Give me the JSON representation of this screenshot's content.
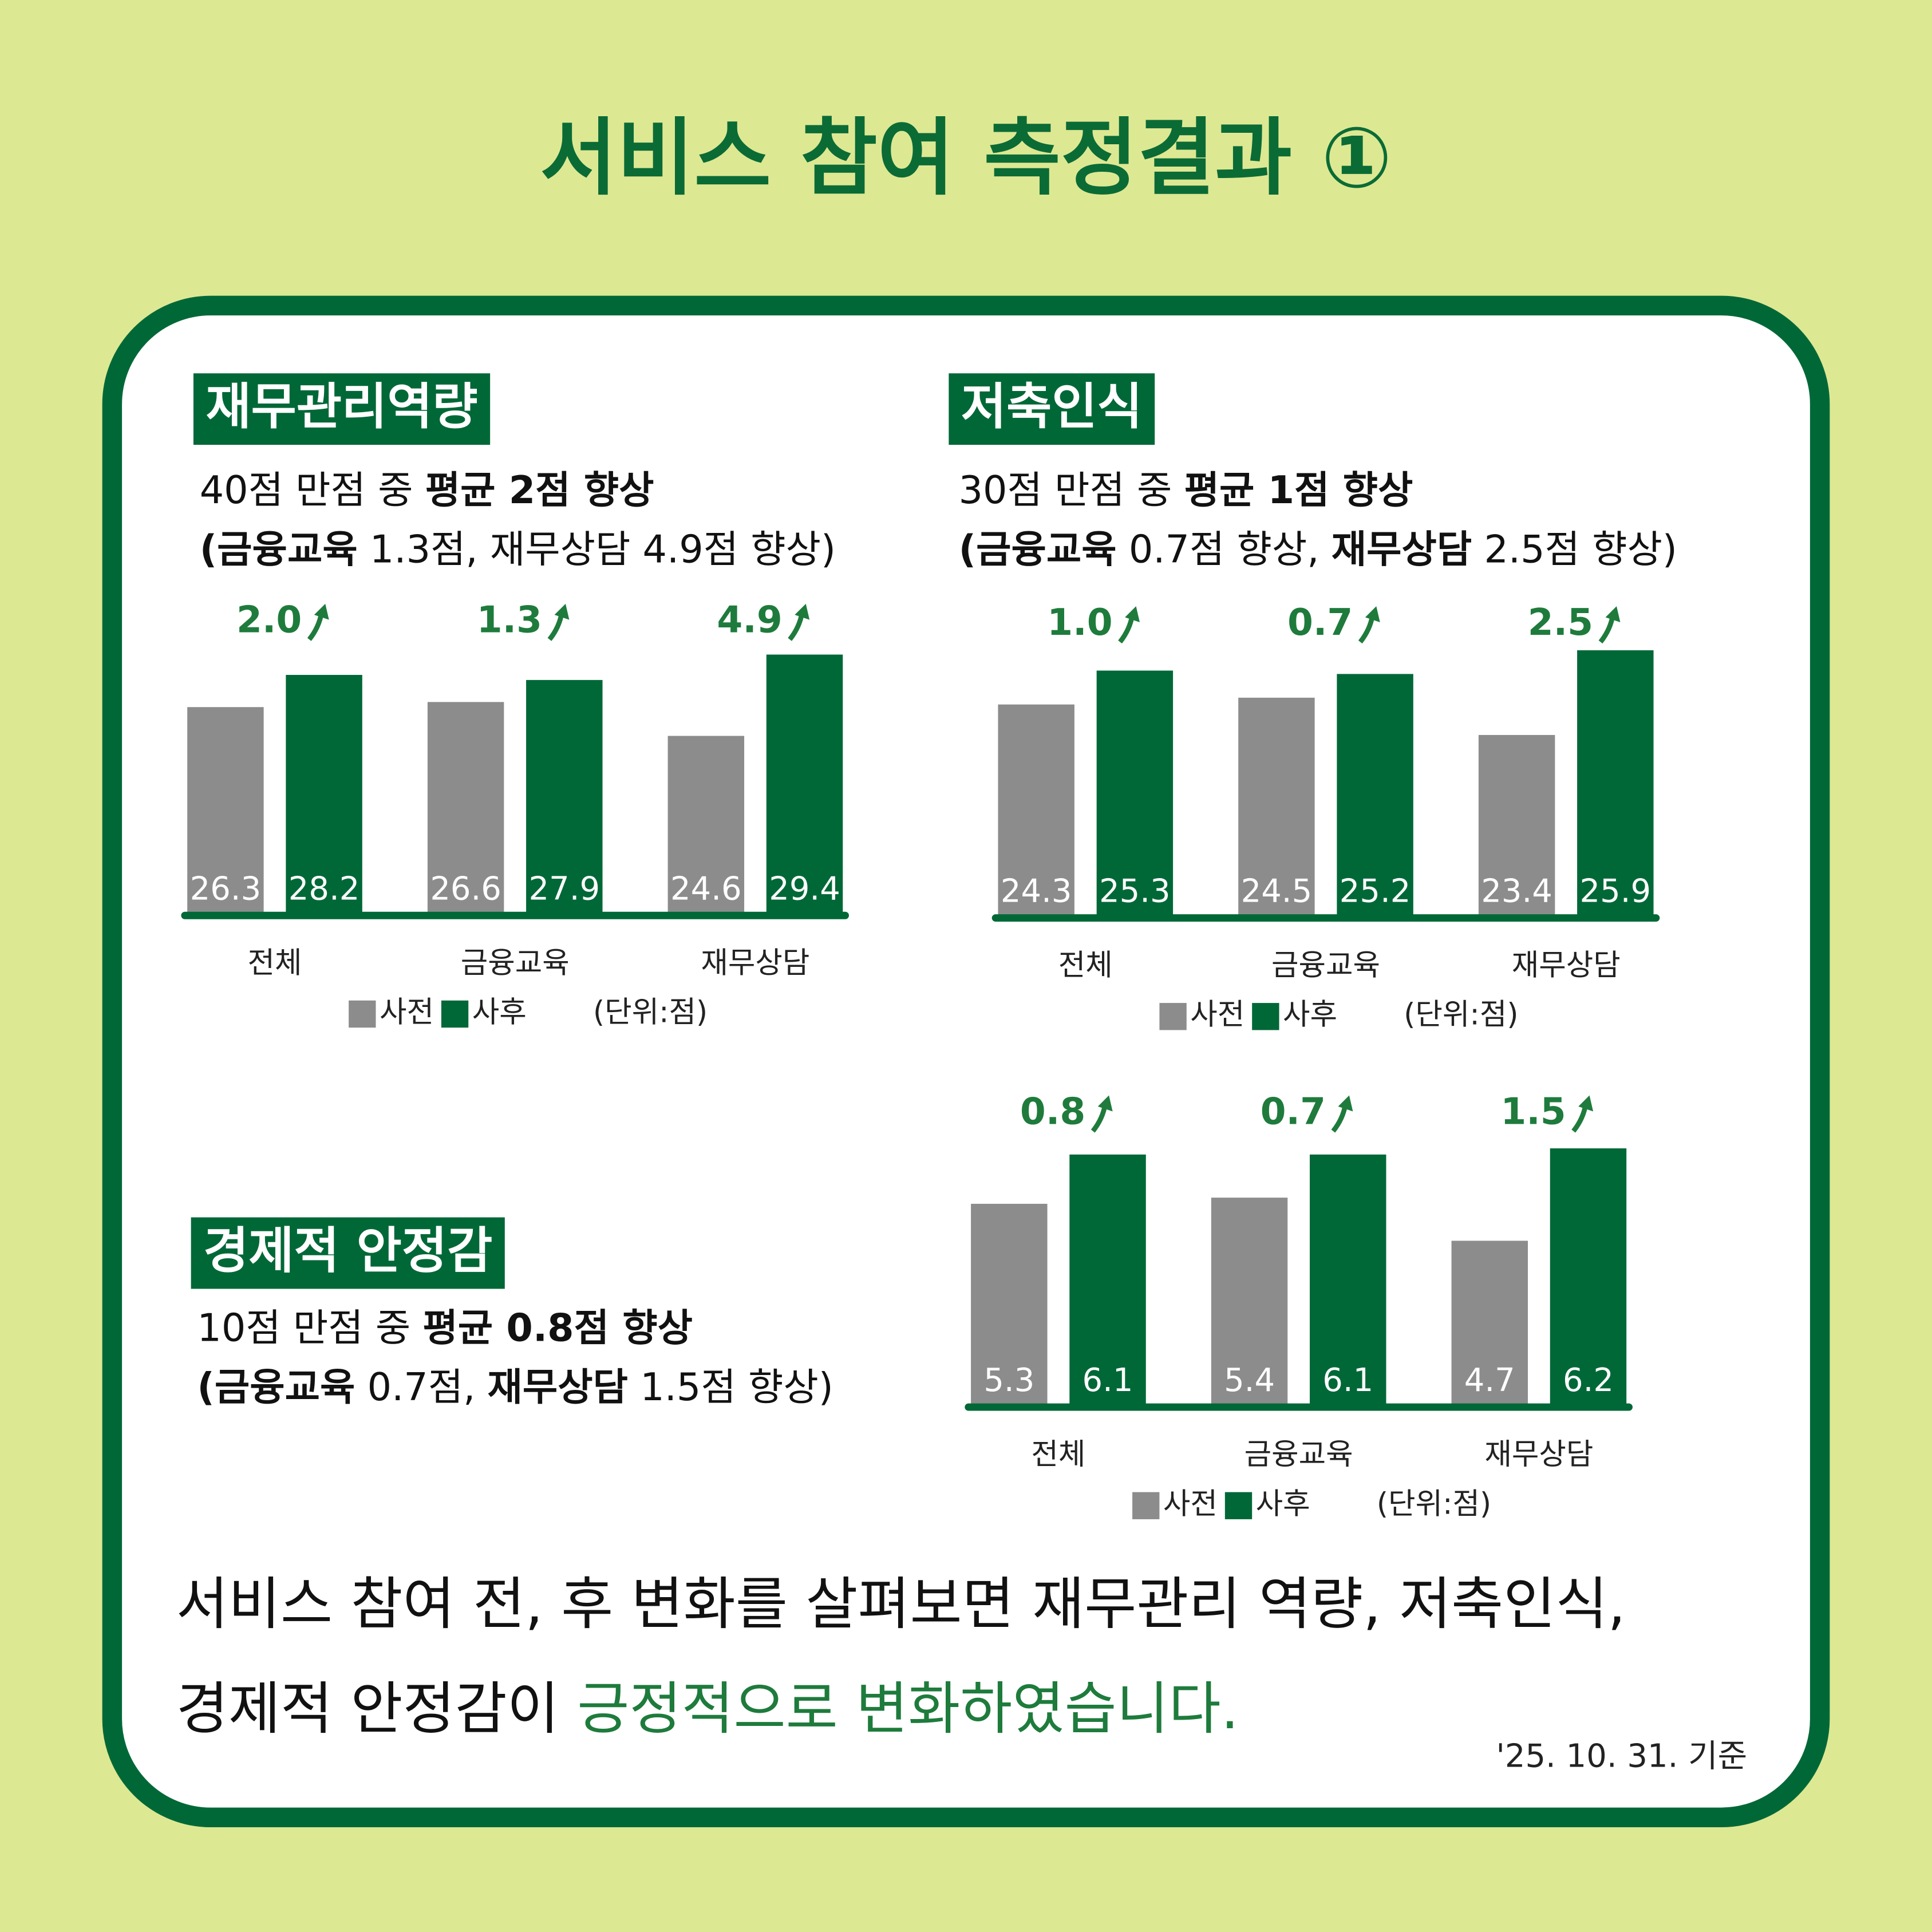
{
  "header": {
    "title": "서비스 참여 측정결과 ①"
  },
  "chart_data": [
    {
      "type": "bar",
      "title": "재무관리역량",
      "subtitle": [
        [
          {
            "text": "40점 만점 중 ",
            "bold": false
          },
          {
            "text": "평균 2점 향상",
            "bold": true
          }
        ],
        [
          {
            "text": "(금융교육",
            "bold": true
          },
          {
            "text": " 1.3점, 재무상담 4.9점 향상)",
            "bold": false
          }
        ]
      ],
      "categories": [
        "전체",
        "금융교육",
        "재무상담"
      ],
      "series": [
        {
          "name": "사전",
          "color": "#8c8c8c",
          "values": [
            26.3,
            26.6,
            24.6
          ]
        },
        {
          "name": "사후",
          "color": "#006837",
          "values": [
            28.2,
            27.9,
            29.4
          ]
        }
      ],
      "changes": [
        2.0,
        1.3,
        4.9
      ],
      "change_labels": [
        "2.0",
        "1.3",
        "4.9"
      ],
      "unit": "(단위:점)",
      "ylim": [
        14,
        30
      ]
    },
    {
      "type": "bar",
      "title": "저축인식",
      "subtitle": [
        [
          {
            "text": "30점 만점 중 ",
            "bold": false
          },
          {
            "text": "평균 1점 향상",
            "bold": true
          }
        ],
        [
          {
            "text": "(금융교육",
            "bold": true
          },
          {
            "text": " 0.7점 향상, ",
            "bold": false
          },
          {
            "text": "재무상담",
            "bold": true
          },
          {
            "text": " 2.5점 향상)",
            "bold": false
          }
        ]
      ],
      "categories": [
        "전체",
        "금융교육",
        "재무상담"
      ],
      "series": [
        {
          "name": "사전",
          "color": "#8c8c8c",
          "values": [
            24.3,
            24.5,
            23.4
          ]
        },
        {
          "name": "사후",
          "color": "#006837",
          "values": [
            25.3,
            25.2,
            25.9
          ]
        }
      ],
      "changes": [
        1.0,
        0.7,
        2.5
      ],
      "change_labels": [
        "1.0",
        "0.7",
        "2.5"
      ],
      "unit": "(단위:점)",
      "ylim": [
        18,
        26
      ]
    },
    {
      "type": "bar",
      "title": "경제적 안정감",
      "subtitle": [
        [
          {
            "text": "10점 만점 중 ",
            "bold": false
          },
          {
            "text": "평균 0.8점 향상",
            "bold": true
          }
        ],
        [
          {
            "text": "(금융교육",
            "bold": true
          },
          {
            "text": " 0.7점, ",
            "bold": false
          },
          {
            "text": "재무상담",
            "bold": true
          },
          {
            "text": " 1.5점 향상)",
            "bold": false
          }
        ]
      ],
      "categories": [
        "전체",
        "금융교육",
        "재무상담"
      ],
      "series": [
        {
          "name": "사전",
          "color": "#8c8c8c",
          "values": [
            5.3,
            5.4,
            4.7
          ]
        },
        {
          "name": "사후",
          "color": "#006837",
          "values": [
            6.1,
            6.1,
            6.2
          ]
        }
      ],
      "changes": [
        0.8,
        0.7,
        1.5
      ],
      "change_labels": [
        "0.8",
        "0.7",
        "1.5"
      ],
      "unit": "(단위:점)",
      "ylim": [
        2,
        6.4
      ]
    }
  ],
  "footer": {
    "lines": [
      [
        {
          "text": "서비스 참여 전, 후 변화를 살펴보면 재무관리 역량, 저축인식,",
          "color": "#111111"
        }
      ],
      [
        {
          "text": "경제적 안정감이 ",
          "color": "#111111"
        },
        {
          "text": "긍정적으로 변화하였습니다.",
          "color": "#1e7b3c"
        }
      ]
    ],
    "date": "'25. 10. 31. 기준"
  }
}
